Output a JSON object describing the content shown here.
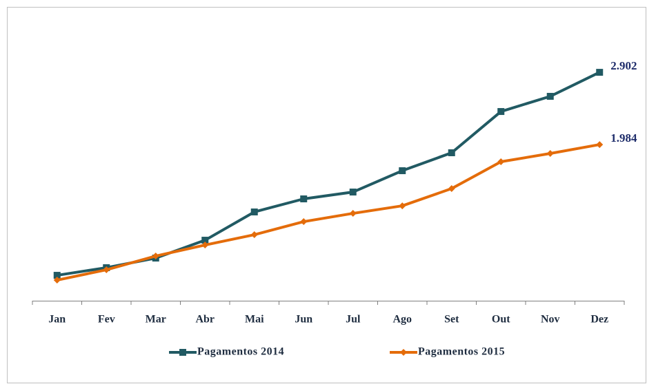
{
  "chart_data": {
    "type": "line",
    "categories": [
      "Jan",
      "Fev",
      "Mar",
      "Abr",
      "Mai",
      "Jun",
      "Jul",
      "Ago",
      "Set",
      "Out",
      "Nov",
      "Dez"
    ],
    "series": [
      {
        "name": "Pagamentos 2014",
        "color": "#215a63",
        "marker": "square",
        "values": [
          323,
          420,
          542,
          769,
          1128,
          1294,
          1381,
          1652,
          1880,
          2404,
          2597,
          2902
        ],
        "value_labels": [
          null,
          null,
          null,
          null,
          null,
          null,
          null,
          null,
          null,
          null,
          null,
          "2.902"
        ]
      },
      {
        "name": "Pagamentos 2015",
        "color": "#e46c0a",
        "marker": "diamond",
        "values": [
          262,
          393,
          568,
          708,
          839,
          1005,
          1110,
          1206,
          1425,
          1766,
          1871,
          1984
        ],
        "value_labels": [
          null,
          null,
          null,
          null,
          null,
          null,
          null,
          null,
          null,
          null,
          null,
          "1.984"
        ]
      }
    ],
    "ylim": [
      0,
      3500
    ]
  }
}
